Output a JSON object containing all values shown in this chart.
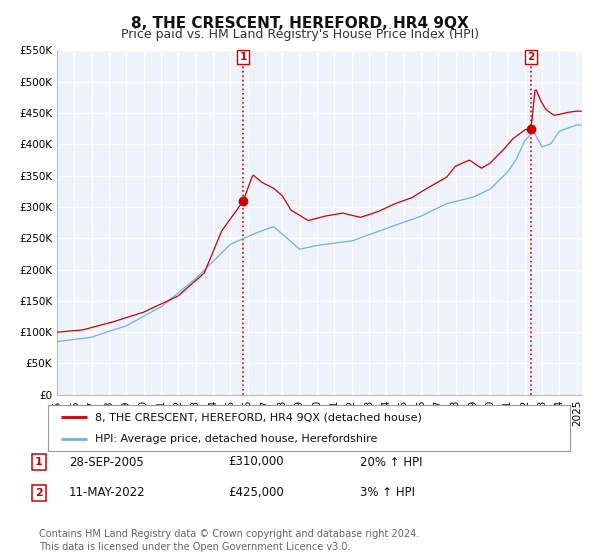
{
  "title": "8, THE CRESCENT, HEREFORD, HR4 9QX",
  "subtitle": "Price paid vs. HM Land Registry's House Price Index (HPI)",
  "ylim": [
    0,
    550000
  ],
  "yticks": [
    0,
    50000,
    100000,
    150000,
    200000,
    250000,
    300000,
    350000,
    400000,
    450000,
    500000,
    550000
  ],
  "ytick_labels": [
    "£0",
    "£50K",
    "£100K",
    "£150K",
    "£200K",
    "£250K",
    "£300K",
    "£350K",
    "£400K",
    "£450K",
    "£500K",
    "£550K"
  ],
  "xlim_start": 1995.0,
  "xlim_end": 2025.3,
  "xticks": [
    1995,
    1996,
    1997,
    1998,
    1999,
    2000,
    2001,
    2002,
    2003,
    2004,
    2005,
    2006,
    2007,
    2008,
    2009,
    2010,
    2011,
    2012,
    2013,
    2014,
    2015,
    2016,
    2017,
    2018,
    2019,
    2020,
    2021,
    2022,
    2023,
    2024,
    2025
  ],
  "background_color": "#eef2fb",
  "grid_color": "#ffffff",
  "line1_color": "#cc0000",
  "line2_color": "#7aaddd",
  "vline_color": "#cc0000",
  "annotation1": {
    "x": 2005.75,
    "label": "1"
  },
  "annotation2": {
    "x": 2022.37,
    "label": "2"
  },
  "marker1_x": 2005.75,
  "marker1_y": 310000,
  "marker2_x": 2022.37,
  "marker2_y": 425000,
  "legend_entries": [
    "8, THE CRESCENT, HEREFORD, HR4 9QX (detached house)",
    "HPI: Average price, detached house, Herefordshire"
  ],
  "table_rows": [
    {
      "num": "1",
      "date": "28-SEP-2005",
      "price": "£310,000",
      "hpi": "20% ↑ HPI"
    },
    {
      "num": "2",
      "date": "11-MAY-2022",
      "price": "£425,000",
      "hpi": "3% ↑ HPI"
    }
  ],
  "footer": "Contains HM Land Registry data © Crown copyright and database right 2024.\nThis data is licensed under the Open Government Licence v3.0.",
  "title_fontsize": 11,
  "subtitle_fontsize": 9,
  "tick_fontsize": 7.5,
  "legend_fontsize": 8,
  "table_fontsize": 8.5,
  "footer_fontsize": 7
}
